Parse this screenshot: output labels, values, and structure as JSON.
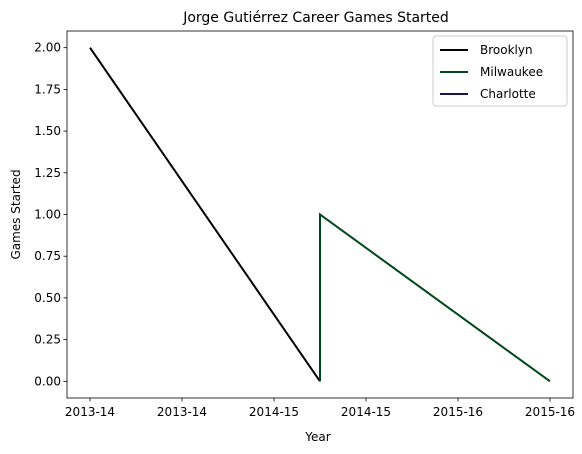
{
  "chart_data": {
    "type": "line",
    "title": "Jorge Gutiérrez  Career Games Started",
    "xlabel": "Year",
    "ylabel": "Games Started",
    "x_tick_labels": [
      "2013-14",
      "2013-14",
      "2014-15",
      "2014-15",
      "2015-16",
      "2015-16"
    ],
    "y_ticks": [
      0.0,
      0.25,
      0.5,
      0.75,
      1.0,
      1.25,
      1.5,
      1.75,
      2.0
    ],
    "y_tick_labels": [
      "0.00",
      "0.25",
      "0.50",
      "0.75",
      "1.00",
      "1.25",
      "1.50",
      "1.75",
      "2.00"
    ],
    "ylim": [
      -0.1,
      2.1
    ],
    "legend_position": "top-right",
    "grid": false,
    "series": [
      {
        "name": "Brooklyn",
        "color": "#000000",
        "points": [
          {
            "x": 0.0,
            "y": 2
          },
          {
            "x": 2.5,
            "y": 0
          }
        ]
      },
      {
        "name": "Milwaukee",
        "color": "#00471b",
        "points": [
          {
            "x": 2.5,
            "y": 0
          },
          {
            "x": 2.5,
            "y": 1
          },
          {
            "x": 5.0,
            "y": 0
          }
        ]
      },
      {
        "name": "Charlotte",
        "color": "#1d1160",
        "points": []
      }
    ]
  }
}
